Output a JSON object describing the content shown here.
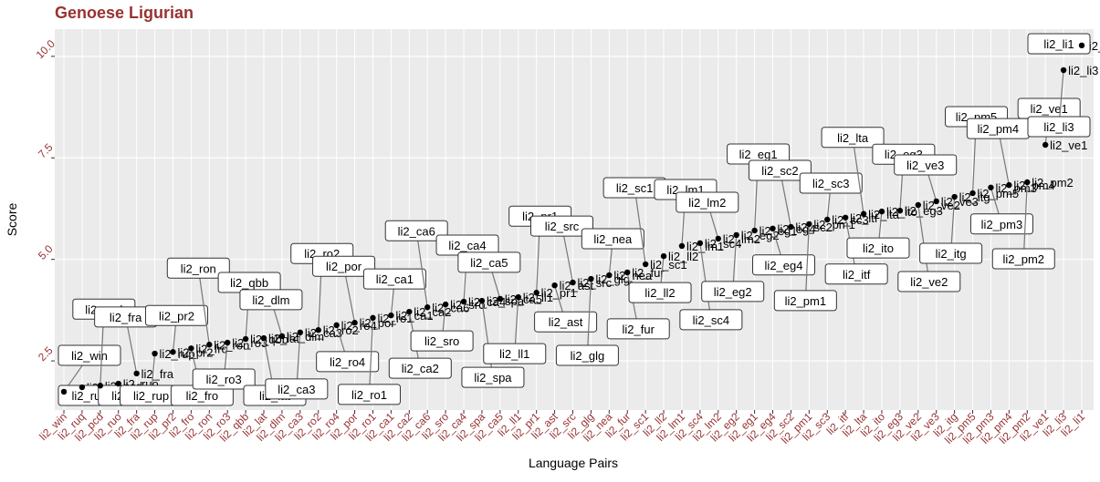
{
  "chart_data": {
    "type": "scatter",
    "title": "Genoese Ligurian",
    "x_label": "Language Pairs",
    "y_label": "Score",
    "categories": [
      "li2_win",
      "li2_ruq",
      "li2_pcd",
      "li2_ruo",
      "li2_fra",
      "li2_rup",
      "li2_pr2",
      "li2_fro",
      "li2_ron",
      "li2_ro3",
      "li2_qbb",
      "li2_lat",
      "li2_dlm",
      "li2_ca3",
      "li2_ro2",
      "li2_ro4",
      "li2_por",
      "li2_ro1",
      "li2_ca1",
      "li2_ca2",
      "li2_ca6",
      "li2_sro",
      "li2_ca4",
      "li2_spa",
      "li2_ca5",
      "li2_ll1",
      "li2_pr1",
      "li2_ast",
      "li2_src",
      "li2_glg",
      "li2_nea",
      "li2_fur",
      "li2_sc1",
      "li2_ll2",
      "li2_lm1",
      "li2_sc4",
      "li2_lm2",
      "li2_eg2",
      "li2_eg1",
      "li2_eg4",
      "li2_sc2",
      "li2_pm1",
      "li2_sc3",
      "li2_itf",
      "li2_lta",
      "li2_ito",
      "li2_eg3",
      "li2_ve2",
      "li2_ve3",
      "li2_itg",
      "li2_pm5",
      "li2_pm3",
      "li2_pm4",
      "li2_pm2",
      "li2_ve1",
      "li2_li3",
      "li2_li1"
    ],
    "values": [
      1.74,
      1.85,
      1.89,
      1.94,
      2.19,
      2.68,
      2.72,
      2.81,
      2.9,
      2.95,
      3.04,
      3.06,
      3.11,
      3.2,
      3.26,
      3.38,
      3.44,
      3.56,
      3.62,
      3.71,
      3.82,
      3.89,
      3.96,
      3.98,
      4.03,
      4.07,
      4.18,
      4.36,
      4.43,
      4.52,
      4.61,
      4.68,
      4.88,
      5.08,
      5.33,
      5.4,
      5.51,
      5.6,
      5.71,
      5.76,
      5.8,
      5.87,
      5.98,
      6.03,
      6.12,
      6.18,
      6.2,
      6.34,
      6.43,
      6.54,
      6.63,
      6.77,
      6.83,
      6.9,
      7.82,
      9.66,
      10.27
    ],
    "color": "#000000",
    "ylim": [
      1.29,
      10.67
    ],
    "yticks": [
      2.5,
      {
        "value": 5,
        "label": "5.0"
      },
      7.5,
      {
        "value": 10,
        "label": "10.0"
      }
    ],
    "grid": true
  }
}
